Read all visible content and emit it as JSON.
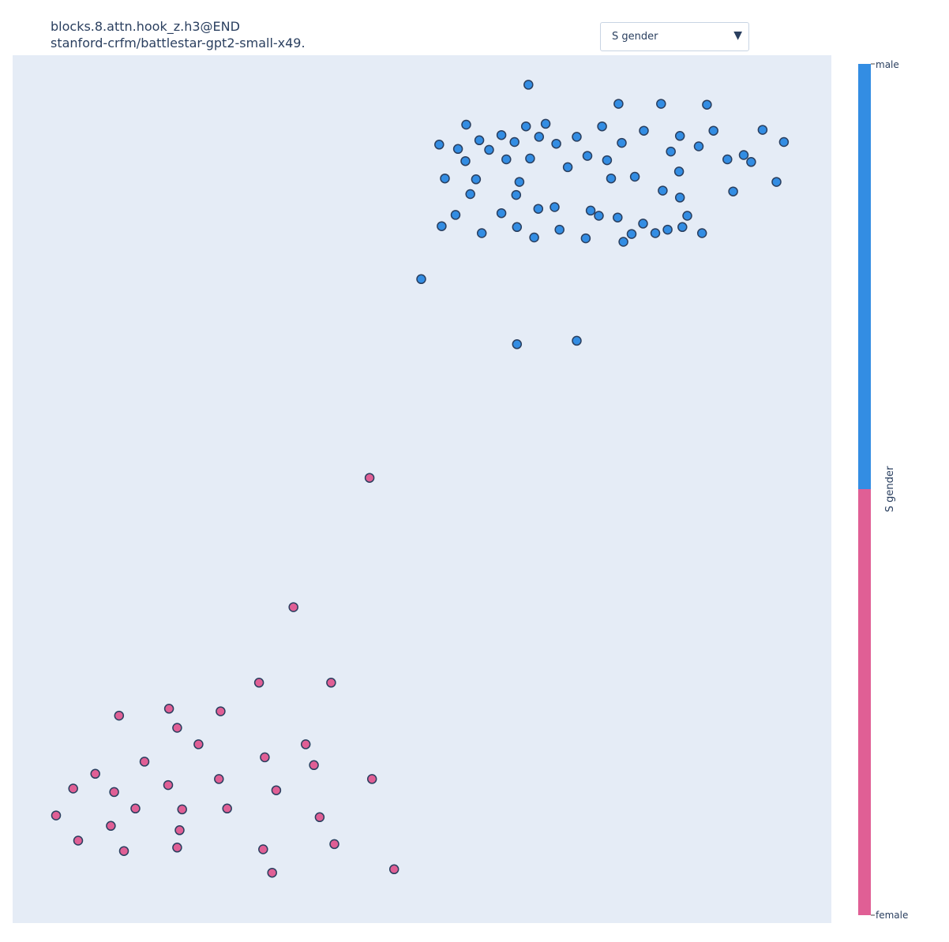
{
  "title": {
    "line1": "blocks.8.attn.hook_z.h3@END",
    "line2": "stanford-crfm/battlestar-gpt2-small-x49."
  },
  "dropdown": {
    "selected": "S gender",
    "arrow_icon": "triangle-down-icon"
  },
  "colors": {
    "plot_bg": "#e5ecf6",
    "male": "#338de3",
    "female": "#e05f95",
    "marker_outline": "#2a3f5f"
  },
  "chart_data": {
    "type": "scatter",
    "title": "",
    "xlabel": "",
    "ylabel": "",
    "grid": false,
    "color_label": "S gender",
    "color_categories": [
      "male",
      "female"
    ],
    "colorbar_position": "right",
    "xlim": [
      0,
      100
    ],
    "ylim": [
      0,
      100
    ],
    "series": [
      {
        "name": "male",
        "color": "#338de3",
        "points": [
          [
            63.0,
            96.6
          ],
          [
            74.0,
            94.4
          ],
          [
            79.2,
            94.4
          ],
          [
            84.8,
            94.3
          ],
          [
            55.4,
            92.0
          ],
          [
            62.7,
            91.8
          ],
          [
            65.1,
            92.1
          ],
          [
            72.0,
            91.8
          ],
          [
            77.1,
            91.3
          ],
          [
            81.5,
            90.7
          ],
          [
            85.6,
            91.3
          ],
          [
            91.6,
            91.4
          ],
          [
            57.0,
            90.2
          ],
          [
            59.7,
            90.8
          ],
          [
            64.3,
            90.6
          ],
          [
            68.9,
            90.6
          ],
          [
            80.4,
            88.9
          ],
          [
            83.8,
            89.5
          ],
          [
            87.3,
            88.0
          ],
          [
            89.3,
            88.5
          ],
          [
            52.1,
            89.7
          ],
          [
            54.4,
            89.2
          ],
          [
            58.2,
            89.1
          ],
          [
            61.3,
            90.0
          ],
          [
            66.4,
            89.8
          ],
          [
            74.4,
            89.9
          ],
          [
            94.2,
            90.0
          ],
          [
            55.3,
            87.8
          ],
          [
            60.3,
            88.0
          ],
          [
            63.2,
            88.1
          ],
          [
            67.8,
            87.1
          ],
          [
            70.2,
            88.4
          ],
          [
            72.6,
            87.9
          ],
          [
            81.4,
            86.6
          ],
          [
            88.0,
            84.3
          ],
          [
            90.2,
            87.7
          ],
          [
            52.8,
            85.8
          ],
          [
            56.6,
            85.7
          ],
          [
            61.9,
            85.4
          ],
          [
            73.1,
            85.8
          ],
          [
            76.0,
            86.0
          ],
          [
            93.3,
            85.4
          ],
          [
            55.9,
            84.0
          ],
          [
            61.5,
            83.9
          ],
          [
            64.2,
            82.3
          ],
          [
            66.2,
            82.5
          ],
          [
            70.6,
            82.1
          ],
          [
            73.9,
            81.3
          ],
          [
            79.4,
            84.4
          ],
          [
            81.5,
            83.6
          ],
          [
            82.4,
            81.5
          ],
          [
            52.4,
            80.3
          ],
          [
            54.1,
            81.6
          ],
          [
            57.3,
            79.5
          ],
          [
            59.7,
            81.8
          ],
          [
            61.6,
            80.2
          ],
          [
            63.7,
            79.0
          ],
          [
            66.8,
            79.9
          ],
          [
            71.6,
            81.5
          ],
          [
            74.6,
            78.5
          ],
          [
            77.0,
            80.6
          ],
          [
            80.0,
            79.9
          ],
          [
            81.8,
            80.2
          ],
          [
            70.0,
            78.9
          ],
          [
            75.6,
            79.4
          ],
          [
            78.5,
            79.5
          ],
          [
            84.2,
            79.5
          ],
          [
            49.9,
            74.2
          ],
          [
            61.6,
            66.7
          ],
          [
            68.9,
            67.1
          ]
        ]
      },
      {
        "name": "female",
        "color": "#e05f95",
        "points": [
          [
            43.6,
            51.3
          ],
          [
            34.3,
            36.4
          ],
          [
            30.1,
            27.7
          ],
          [
            38.9,
            27.7
          ],
          [
            13.0,
            23.9
          ],
          [
            19.1,
            24.7
          ],
          [
            25.4,
            24.4
          ],
          [
            20.1,
            22.5
          ],
          [
            22.7,
            20.6
          ],
          [
            30.8,
            19.1
          ],
          [
            35.8,
            20.6
          ],
          [
            16.1,
            18.6
          ],
          [
            36.8,
            18.2
          ],
          [
            10.1,
            17.2
          ],
          [
            25.2,
            16.6
          ],
          [
            43.9,
            16.6
          ],
          [
            7.4,
            15.5
          ],
          [
            12.4,
            15.1
          ],
          [
            19.0,
            15.9
          ],
          [
            32.2,
            15.3
          ],
          [
            15.0,
            13.2
          ],
          [
            20.7,
            13.1
          ],
          [
            26.2,
            13.2
          ],
          [
            37.5,
            12.2
          ],
          [
            5.3,
            12.4
          ],
          [
            12.0,
            11.2
          ],
          [
            20.4,
            10.7
          ],
          [
            8.0,
            9.5
          ],
          [
            13.6,
            8.3
          ],
          [
            20.1,
            8.7
          ],
          [
            30.6,
            8.5
          ],
          [
            39.3,
            9.1
          ],
          [
            31.7,
            5.8
          ],
          [
            46.6,
            6.2
          ]
        ]
      }
    ]
  }
}
